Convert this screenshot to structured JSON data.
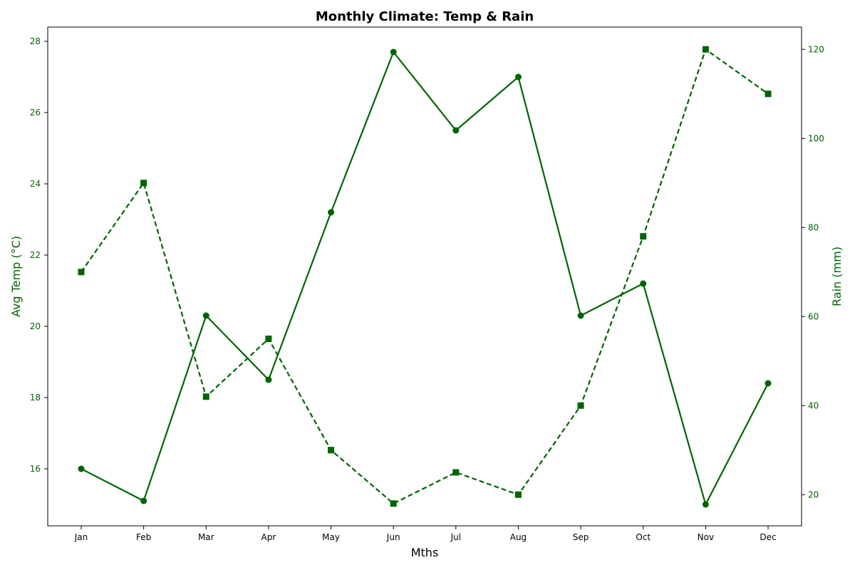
{
  "chart_data": {
    "type": "line",
    "title": "Monthly Climate: Temp & Rain",
    "xlabel": "Mths",
    "ylabel_left": "Avg Temp (°C)",
    "ylabel_right": "Rain (mm)",
    "categories": [
      "Jan",
      "Feb",
      "Mar",
      "Apr",
      "May",
      "Jun",
      "Jul",
      "Aug",
      "Sep",
      "Oct",
      "Nov",
      "Dec"
    ],
    "ylim_left": [
      14.4,
      28.4
    ],
    "ylim_right": [
      13,
      125
    ],
    "yticks_left": [
      16,
      18,
      20,
      22,
      24,
      26,
      28
    ],
    "yticks_right": [
      20,
      40,
      60,
      80,
      100,
      120
    ],
    "grid": false,
    "series": [
      {
        "key": "temp",
        "axis": "left",
        "style": "solid",
        "marker": "circle",
        "values": [
          16.0,
          15.1,
          20.3,
          18.5,
          23.2,
          27.7,
          25.5,
          27.0,
          20.3,
          21.2,
          15.0,
          18.4
        ]
      },
      {
        "key": "rain",
        "axis": "right",
        "style": "dashed",
        "marker": "square",
        "values": [
          70,
          90,
          42,
          55,
          30,
          18,
          25,
          20,
          40,
          78,
          120,
          110
        ]
      }
    ],
    "colors": {
      "series": "#006400",
      "axis_text": "#006400",
      "frame": "#000000"
    }
  }
}
